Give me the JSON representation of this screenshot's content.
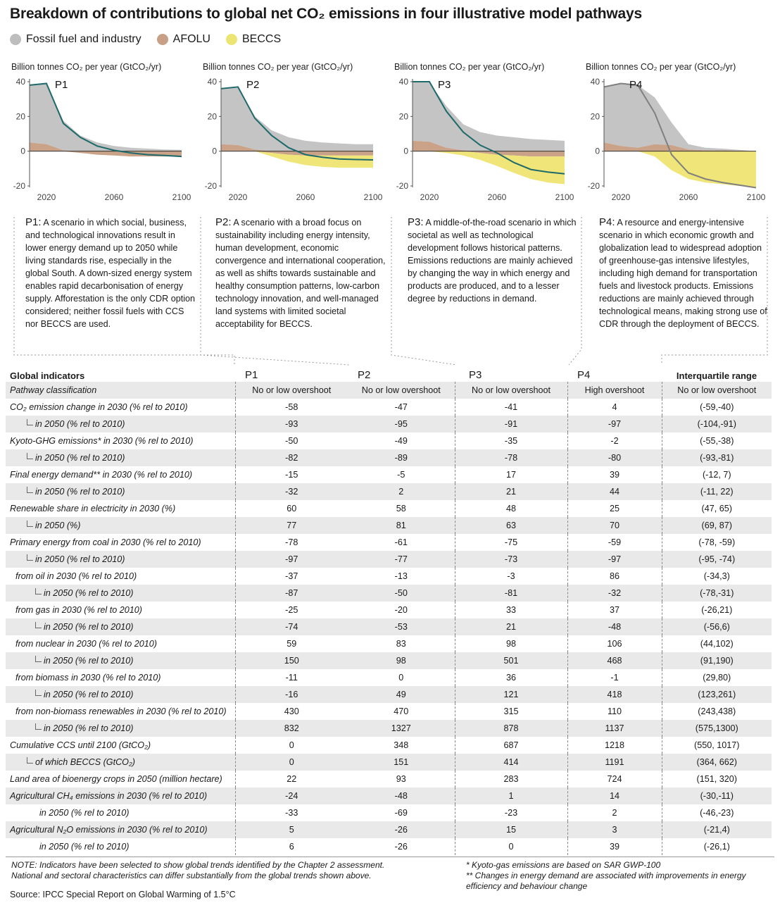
{
  "title": "Breakdown of contributions to global net CO₂ emissions in four illustrative model pathways",
  "legend": [
    {
      "label": "Fossil fuel and industry",
      "color": "#bdbdbd"
    },
    {
      "label": "AFOLU",
      "color": "#c8a085"
    },
    {
      "label": "BECCS",
      "color": "#ede572"
    }
  ],
  "colors": {
    "fossil": "#c4c4c4",
    "afolu": "#c9a287",
    "beccs": "#efe578",
    "net": "#1e6a6a",
    "net_p4": "#7f7f7f"
  },
  "chart_data": [
    {
      "type": "area",
      "panel": "P1",
      "unit_label": "Billion tonnes CO₂ per year (GtCO₂/yr)",
      "ylim": [
        -20,
        40
      ],
      "yticks": [
        40,
        20,
        0,
        -20
      ],
      "xlim": [
        2010,
        2100
      ],
      "xticks": [
        2020,
        2060,
        2100
      ],
      "x": [
        2010,
        2020,
        2030,
        2040,
        2050,
        2060,
        2070,
        2080,
        2090,
        2100
      ],
      "series": [
        {
          "name": "Fossil fuel and industry",
          "values": [
            33,
            35,
            17,
            9,
            5,
            3,
            2,
            1.5,
            1,
            0.8
          ]
        },
        {
          "name": "AFOLU",
          "values": [
            5,
            4,
            0.5,
            -1,
            -2,
            -2.5,
            -3,
            -3,
            -3,
            -3
          ]
        },
        {
          "name": "BECCS",
          "values": [
            0,
            0,
            0,
            0,
            0,
            0,
            0,
            0,
            0,
            0
          ]
        },
        {
          "name": "net",
          "values": [
            38,
            39,
            16,
            8,
            3,
            0.5,
            -1,
            -2,
            -2.5,
            -3
          ]
        }
      ]
    },
    {
      "type": "area",
      "panel": "P2",
      "unit_label": "Billion tonnes CO₂ per year (GtCO₂/yr)",
      "ylim": [
        -20,
        40
      ],
      "yticks": [
        40,
        20,
        0,
        -20
      ],
      "xlim": [
        2010,
        2100
      ],
      "xticks": [
        2020,
        2060,
        2100
      ],
      "x": [
        2010,
        2020,
        2030,
        2040,
        2050,
        2060,
        2070,
        2080,
        2090,
        2100
      ],
      "series": [
        {
          "name": "Fossil fuel and industry",
          "values": [
            32,
            33,
            19,
            12,
            8,
            6,
            5,
            4.5,
            4,
            4
          ]
        },
        {
          "name": "AFOLU",
          "values": [
            4,
            3.5,
            1,
            -1,
            -2,
            -2.5,
            -2.5,
            -2.5,
            -2.5,
            -2.5
          ]
        },
        {
          "name": "BECCS",
          "values": [
            0,
            0,
            0,
            -2,
            -4,
            -5.5,
            -6.5,
            -7,
            -7,
            -7
          ]
        },
        {
          "name": "net",
          "values": [
            36,
            37,
            19,
            9,
            2,
            -2,
            -3.5,
            -4.5,
            -4.8,
            -5
          ]
        }
      ]
    },
    {
      "type": "area",
      "panel": "P3",
      "unit_label": "Billion tonnes CO₂ per year (GtCO₂/yr)",
      "ylim": [
        -20,
        40
      ],
      "yticks": [
        40,
        20,
        0,
        -20
      ],
      "xlim": [
        2010,
        2100
      ],
      "xticks": [
        2020,
        2060,
        2100
      ],
      "x": [
        2010,
        2020,
        2030,
        2040,
        2050,
        2060,
        2070,
        2080,
        2090,
        2100
      ],
      "series": [
        {
          "name": "Fossil fuel and industry",
          "values": [
            34,
            34,
            24,
            15,
            11,
            9,
            8,
            7,
            6.5,
            6
          ]
        },
        {
          "name": "AFOLU",
          "values": [
            6,
            5.5,
            2,
            0.5,
            -1,
            -2,
            -2.5,
            -3,
            -3,
            -3
          ]
        },
        {
          "name": "BECCS",
          "values": [
            0,
            0,
            -1,
            -2.5,
            -4,
            -6.5,
            -10,
            -13,
            -15,
            -16
          ]
        },
        {
          "name": "net",
          "values": [
            40,
            40,
            23,
            11,
            3.5,
            -1,
            -6.5,
            -10.5,
            -12,
            -13
          ]
        }
      ]
    },
    {
      "type": "area",
      "panel": "P4",
      "unit_label": "Billion tonnes CO₂ per year (GtCO₂/yr)",
      "ylim": [
        -20,
        40
      ],
      "yticks": [
        40,
        20,
        0,
        -20
      ],
      "xlim": [
        2010,
        2100
      ],
      "xticks": [
        2020,
        2060,
        2100
      ],
      "x": [
        2010,
        2020,
        2030,
        2040,
        2050,
        2060,
        2070,
        2080,
        2090,
        2100
      ],
      "series": [
        {
          "name": "Fossil fuel and industry",
          "values": [
            32,
            36,
            36,
            27,
            13,
            3,
            1.5,
            1,
            0.5,
            0
          ]
        },
        {
          "name": "AFOLU",
          "values": [
            5,
            3,
            2,
            4,
            3.5,
            1,
            0.5,
            0.5,
            0.3,
            0
          ]
        },
        {
          "name": "BECCS",
          "values": [
            0,
            0,
            0,
            -3,
            -11,
            -16,
            -18,
            -19,
            -20,
            -21
          ]
        },
        {
          "name": "net",
          "values": [
            37,
            39,
            38,
            22,
            -2,
            -12.5,
            -16,
            -18,
            -19.5,
            -21
          ]
        }
      ]
    }
  ],
  "descriptions": [
    {
      "lead": "P1:",
      "text": "A scenario in which social, business, and technological innovations result in lower energy demand up to 2050 while living standards rise, especially in the global South. A down-sized energy system enables rapid decarbonisation of energy supply. Afforestation is the only CDR option considered; neither fossil fuels with CCS nor BECCS are used."
    },
    {
      "lead": "P2:",
      "text": "A scenario with a broad focus on sustainability including energy intensity, human development, economic convergence and international cooperation, as well as shifts towards sustainable and healthy consumption patterns, low-carbon technology innovation, and well-managed land systems with limited societal acceptability for BECCS."
    },
    {
      "lead": "P3:",
      "text": "A middle-of-the-road scenario in which societal as well as technological development follows historical patterns. Emissions reductions are mainly achieved by changing the way in which energy and products are produced, and to a lesser degree by reductions in demand."
    },
    {
      "lead": "P4:",
      "text": "A resource and energy-intensive scenario in which economic growth and globalization lead to widespread adoption of greenhouse-gas intensive lifestyles, including high demand for transportation fuels and livestock products. Emissions reductions are mainly achieved through technological means, making strong use of CDR through the deployment of BECCS."
    }
  ],
  "table": {
    "headers": [
      "Global indicators",
      "P1",
      "P2",
      "P3",
      "P4",
      "Interquartile range"
    ],
    "rows": [
      {
        "label": "Pathway classification",
        "indent": 0,
        "hook": false,
        "values": [
          "No or low overshoot",
          "No or low overshoot",
          "No or low overshoot",
          "High overshoot",
          "No or low overshoot"
        ]
      },
      {
        "label": "CO₂ emission change in 2030 (% rel to 2010)",
        "indent": 0,
        "hook": false,
        "values": [
          "-58",
          "-47",
          "-41",
          "4",
          "(-59,-40)"
        ]
      },
      {
        "label": "in 2050 (% rel to 2010)",
        "indent": 2,
        "hook": true,
        "values": [
          "-93",
          "-95",
          "-91",
          "-97",
          "(-104,-91)"
        ]
      },
      {
        "label": "Kyoto-GHG emissions* in 2030 (% rel to 2010)",
        "indent": 0,
        "hook": false,
        "values": [
          "-50",
          "-49",
          "-35",
          "-2",
          "(-55,-38)"
        ]
      },
      {
        "label": "in 2050 (% rel to 2010)",
        "indent": 2,
        "hook": true,
        "values": [
          "-82",
          "-89",
          "-78",
          "-80",
          "(-93,-81)"
        ]
      },
      {
        "label": "Final energy demand** in 2030 (% rel to 2010)",
        "indent": 0,
        "hook": false,
        "values": [
          "-15",
          "-5",
          "17",
          "39",
          "(-12, 7)"
        ]
      },
      {
        "label": "in 2050 (% rel to 2010)",
        "indent": 2,
        "hook": true,
        "values": [
          "-32",
          "2",
          "21",
          "44",
          "(-11, 22)"
        ]
      },
      {
        "label": "Renewable share in electricity in 2030 (%)",
        "indent": 0,
        "hook": false,
        "values": [
          "60",
          "58",
          "48",
          "25",
          "(47, 65)"
        ]
      },
      {
        "label": "in 2050 (%)",
        "indent": 2,
        "hook": true,
        "values": [
          "77",
          "81",
          "63",
          "70",
          "(69, 87)"
        ]
      },
      {
        "label": "Primary energy from coal in 2030 (% rel to 2010)",
        "indent": 0,
        "hook": false,
        "values": [
          "-78",
          "-61",
          "-75",
          "-59",
          "(-78, -59)"
        ]
      },
      {
        "label": "in 2050 (% rel to 2010)",
        "indent": 2,
        "hook": true,
        "values": [
          "-97",
          "-77",
          "-73",
          "-97",
          "(-95, -74)"
        ]
      },
      {
        "label": "from oil in 2030  (% rel to 2010)",
        "indent": 1,
        "hook": false,
        "values": [
          "-37",
          "-13",
          "-3",
          "86",
          "(-34,3)"
        ]
      },
      {
        "label": "in 2050  (% rel to 2010)",
        "indent": 3,
        "hook": true,
        "values": [
          "-87",
          "-50",
          "-81",
          "-32",
          "(-78,-31)"
        ]
      },
      {
        "label": "from gas in 2030  (% rel to 2010)",
        "indent": 1,
        "hook": false,
        "values": [
          "-25",
          "-20",
          "33",
          "37",
          "(-26,21)"
        ]
      },
      {
        "label": "in 2050  (% rel to 2010)",
        "indent": 3,
        "hook": true,
        "values": [
          "-74",
          "-53",
          "21",
          "-48",
          "(-56,6)"
        ]
      },
      {
        "label": "from nuclear in 2030  (% rel to 2010)",
        "indent": 1,
        "hook": false,
        "values": [
          "59",
          "83",
          "98",
          "106",
          "(44,102)"
        ]
      },
      {
        "label": "in 2050  (% rel to 2010)",
        "indent": 3,
        "hook": true,
        "values": [
          "150",
          "98",
          "501",
          "468",
          "(91,190)"
        ]
      },
      {
        "label": "from biomass in 2030  (% rel to 2010)",
        "indent": 1,
        "hook": false,
        "values": [
          "-11",
          "0",
          "36",
          "-1",
          "(29,80)"
        ]
      },
      {
        "label": "in 2050  (% rel to 2010)",
        "indent": 3,
        "hook": true,
        "values": [
          "-16",
          "49",
          "121",
          "418",
          "(123,261)"
        ]
      },
      {
        "label": "from non-biomass renewables in 2030  (% rel to 2010)",
        "indent": 1,
        "hook": false,
        "values": [
          "430",
          "470",
          "315",
          "110",
          "(243,438)"
        ]
      },
      {
        "label": "in 2050  (% rel to 2010)",
        "indent": 3,
        "hook": true,
        "values": [
          "832",
          "1327",
          "878",
          "1137",
          "(575,1300)"
        ]
      },
      {
        "label": "Cumulative CCS until 2100 (GtCO₂)",
        "indent": 0,
        "hook": false,
        "values": [
          "0",
          "348",
          "687",
          "1218",
          "(550, 1017)"
        ]
      },
      {
        "label": "of which BECCS (GtCO₂)",
        "indent": 2,
        "hook": true,
        "values": [
          "0",
          "151",
          "414",
          "1191",
          "(364, 662)"
        ]
      },
      {
        "label": "Land area of bioenergy crops in 2050 (million hectare)",
        "indent": 0,
        "hook": false,
        "values": [
          "22",
          "93",
          "283",
          "724",
          "(151, 320)"
        ]
      },
      {
        "label": "Agricultural CH₄ emissions in 2030 (% rel to 2010)",
        "indent": 0,
        "hook": false,
        "values": [
          "-24",
          "-48",
          "1",
          "14",
          "(-30,-11)"
        ]
      },
      {
        "label": "in 2050  (% rel to 2010)",
        "indent": 4,
        "hook": false,
        "values": [
          "-33",
          "-69",
          "-23",
          "2",
          "(-46,-23)"
        ]
      },
      {
        "label": "Agricultural N₂O emissions in 2030 (% rel to 2010)",
        "indent": 0,
        "hook": false,
        "values": [
          "5",
          "-26",
          "15",
          "3",
          "(-21,4)"
        ]
      },
      {
        "label": "in 2050  (% rel to 2010)",
        "indent": 4,
        "hook": false,
        "values": [
          "6",
          "-26",
          "0",
          "39",
          "(-26,1)"
        ]
      }
    ]
  },
  "notes": {
    "left": [
      "NOTE: Indicators have been selected to show global trends identified by the Chapter 2 assessment.",
      "National and sectoral characteristics can differ substantially from the global trends shown above."
    ],
    "right": [
      "* Kyoto-gas emissions are based on SAR GWP-100",
      "** Changes in energy demand are associated with improvements in energy",
      "efficiency and behaviour change"
    ]
  },
  "source": "Source: IPCC Special Report on Global Warming of 1.5°C"
}
